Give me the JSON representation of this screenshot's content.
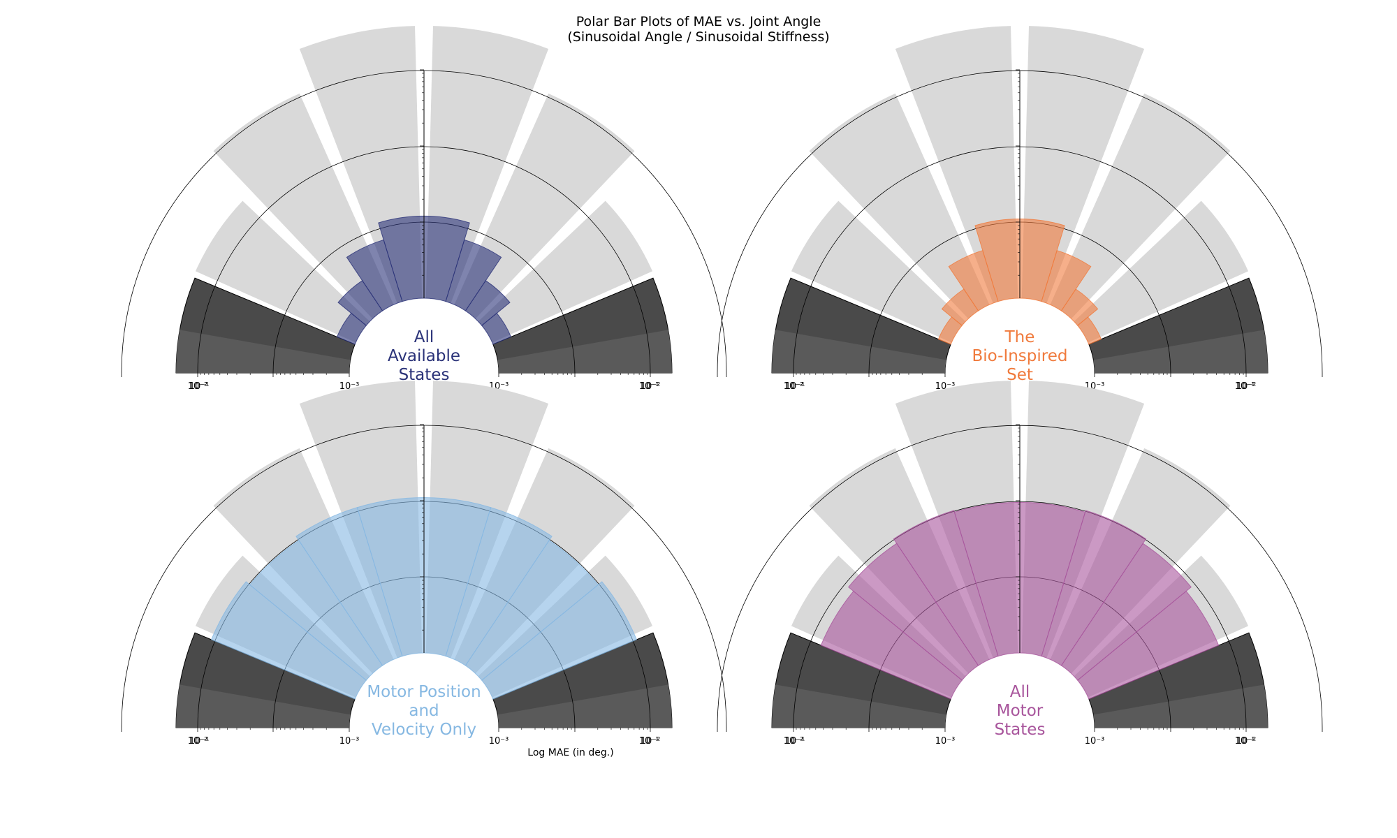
{
  "figure": {
    "title_line1": "Polar Bar Plots of MAE vs. Joint Angle",
    "title_line2": "(Sinusoidal Angle / Sinusoidal Stiffness)",
    "xlabel": "Log MAE (in deg.)"
  },
  "chart_data": [
    {
      "type": "polar-bar",
      "panel": "top-left",
      "center_label": [
        "All",
        "Available",
        "States"
      ],
      "color": "#2a3278",
      "scale": "log",
      "r_range": [
        0.001,
        0.2
      ],
      "tick_labels": [
        "10⁻¹",
        "10⁻²",
        "10⁻³"
      ],
      "values": [
        0.0018,
        0.003,
        0.007,
        0.012,
        0.012,
        0.007,
        0.003,
        0.0018
      ]
    },
    {
      "type": "polar-bar",
      "panel": "top-right",
      "center_label": [
        "The",
        "Bio-Inspired",
        "Set"
      ],
      "color": "#f07a3c",
      "scale": "log",
      "r_range": [
        0.001,
        0.2
      ],
      "tick_labels": [
        "10⁻¹",
        "10⁻²",
        "10⁻³"
      ],
      "values": [
        0.0015,
        0.0022,
        0.005,
        0.011,
        0.011,
        0.005,
        0.0022,
        0.0015
      ]
    },
    {
      "type": "polar-bar",
      "panel": "bottom-left",
      "center_label": [
        "Motor Position",
        "and",
        "Velocity Only"
      ],
      "color": "#86b8e2",
      "scale": "log",
      "r_range": [
        0.001,
        0.2
      ],
      "tick_labels": [
        "10⁻¹",
        "10⁻²",
        "10⁻³"
      ],
      "values": [
        0.11,
        0.095,
        0.11,
        0.11,
        0.11,
        0.11,
        0.095,
        0.11
      ]
    },
    {
      "type": "polar-bar",
      "panel": "bottom-right",
      "center_label": [
        "All",
        "Motor",
        "States"
      ],
      "color": "#a8559c",
      "scale": "log",
      "r_range": [
        0.001,
        0.2
      ],
      "tick_labels": [
        "10⁻¹",
        "10⁻²",
        "10⁻³"
      ],
      "values": [
        0.07,
        0.085,
        0.1,
        0.095,
        0.095,
        0.1,
        0.085,
        0.07
      ]
    }
  ]
}
